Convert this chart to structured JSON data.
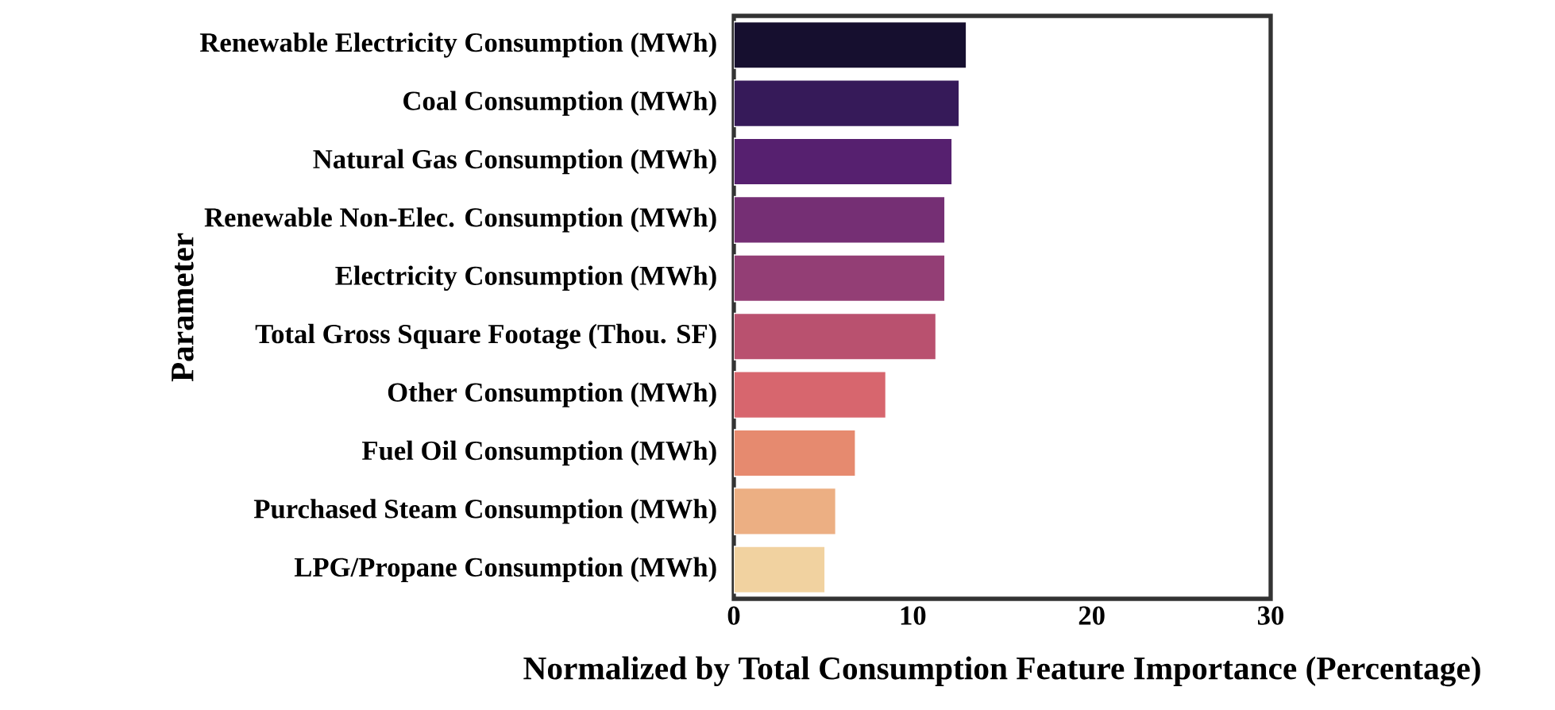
{
  "chart_data": {
    "type": "bar",
    "orientation": "horizontal",
    "xlabel": "Normalized by Total Consumption Feature Importance (Percentage)",
    "ylabel": "Parameter",
    "categories": [
      "Renewable Electricity Consumption (MWh)",
      "Coal Consumption (MWh)",
      "Natural Gas Consumption (MWh)",
      "Renewable Non-Elec. Consumption (MWh)",
      "Electricity Consumption (MWh)",
      "Total Gross Square Footage (Thou. SF)",
      "Other Consumption (MWh)",
      "Fuel Oil Consumption (MWh)",
      "Purchased Steam Consumption (MWh)",
      "LPG/Propane Consumption (MWh)"
    ],
    "values": [
      13.0,
      12.6,
      12.2,
      11.8,
      11.8,
      11.3,
      8.5,
      6.8,
      5.7,
      5.1
    ],
    "colors": [
      "#160f2f",
      "#361a59",
      "#56206f",
      "#752f74",
      "#933e75",
      "#b9516f",
      "#d7666e",
      "#e68a6f",
      "#ecaf83",
      "#f1d2a0"
    ],
    "xlim": [
      0,
      30
    ],
    "xticks": [
      0,
      10,
      20,
      30
    ],
    "grid": false
  }
}
